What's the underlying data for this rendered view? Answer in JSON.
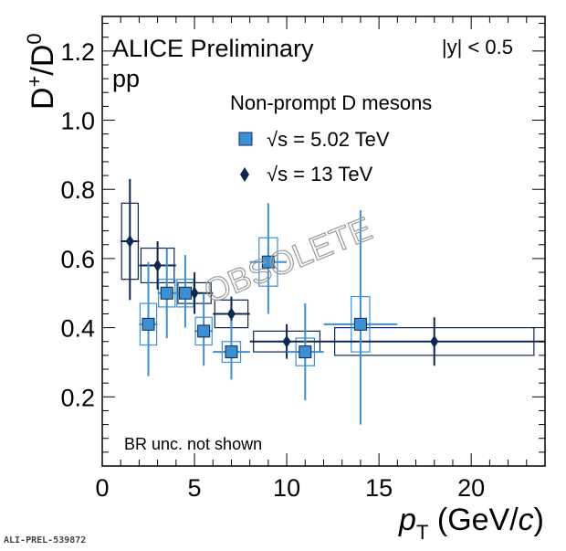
{
  "chart_data": {
    "type": "scatter",
    "xlim": [
      0,
      24
    ],
    "ylim": [
      0,
      1.3
    ],
    "xticks": [
      0,
      5,
      10,
      15,
      20
    ],
    "yticks": [
      0.2,
      0.4,
      0.6,
      0.8,
      1.0,
      1.2
    ],
    "ytick_labels": [
      "0.2",
      "0.4",
      "0.6",
      "0.8",
      "1.0",
      "1.2"
    ],
    "xtick_labels": [
      "0",
      "5",
      "10",
      "15",
      "20"
    ],
    "xlabel": "p_T (GeV/c)",
    "xlabel_main": "p",
    "xlabel_sub": "T",
    "xlabel_unit_open": " (GeV/",
    "xlabel_unit_c": "c",
    "xlabel_unit_close": ")",
    "ylabel": "D+/D0",
    "ylabel_D1": "D",
    "ylabel_sup1": "+",
    "ylabel_slash": "/D",
    "ylabel_sup2": "0",
    "experiment": "ALICE Preliminary",
    "system": "pp",
    "rapidity": "|y| < 0.5",
    "legend_title": "Non-prompt D mesons",
    "note": "BR unc. not shown",
    "watermark": "OBSOLETE",
    "grid": false,
    "legend_position": "top-right",
    "colors": {
      "s502": "#3d8fd4",
      "s13": "#0d2850"
    },
    "series": [
      {
        "name": "√s = 5.02 TeV",
        "marker": "square",
        "points": [
          {
            "x": 2.5,
            "y": 0.41,
            "xlo": 2,
            "xhi": 3,
            "stat_lo": 0.15,
            "stat_hi": 0.18,
            "sys": 0.06
          },
          {
            "x": 3.5,
            "y": 0.5,
            "xlo": 3,
            "xhi": 4,
            "stat_lo": 0.13,
            "stat_hi": 0.13,
            "sys": 0.04
          },
          {
            "x": 4.5,
            "y": 0.5,
            "xlo": 4,
            "xhi": 5,
            "stat_lo": 0.1,
            "stat_hi": 0.11,
            "sys": 0.04
          },
          {
            "x": 5.5,
            "y": 0.39,
            "xlo": 5,
            "xhi": 6,
            "stat_lo": 0.1,
            "stat_hi": 0.11,
            "sys": 0.04
          },
          {
            "x": 7,
            "y": 0.33,
            "xlo": 6,
            "xhi": 8,
            "stat_lo": 0.08,
            "stat_hi": 0.09,
            "sys": 0.03
          },
          {
            "x": 9,
            "y": 0.59,
            "xlo": 8,
            "xhi": 10,
            "stat_lo": 0.15,
            "stat_hi": 0.17,
            "sys": 0.07
          },
          {
            "x": 11,
            "y": 0.33,
            "xlo": 10,
            "xhi": 12,
            "stat_lo": 0.14,
            "stat_hi": 0.14,
            "sys": 0.04
          },
          {
            "x": 14,
            "y": 0.41,
            "xlo": 12,
            "xhi": 16,
            "stat_lo": 0.29,
            "stat_hi": 0.33,
            "sys": 0.08
          }
        ]
      },
      {
        "name": "√s = 13 TeV",
        "marker": "diamond",
        "points": [
          {
            "x": 1.5,
            "y": 0.65,
            "xlo": 1,
            "xhi": 2,
            "stat_lo": 0.17,
            "stat_hi": 0.18,
            "sys": 0.11
          },
          {
            "x": 3,
            "y": 0.58,
            "xlo": 2,
            "xhi": 4,
            "stat_lo": 0.07,
            "stat_hi": 0.07,
            "sys": 0.05
          },
          {
            "x": 5,
            "y": 0.5,
            "xlo": 4,
            "xhi": 6,
            "stat_lo": 0.06,
            "stat_hi": 0.06,
            "sys": 0.03
          },
          {
            "x": 7,
            "y": 0.44,
            "xlo": 6,
            "xhi": 8,
            "stat_lo": 0.05,
            "stat_hi": 0.05,
            "sys": 0.04
          },
          {
            "x": 10,
            "y": 0.36,
            "xlo": 8,
            "xhi": 12,
            "stat_lo": 0.05,
            "stat_hi": 0.05,
            "sys": 0.03
          },
          {
            "x": 18,
            "y": 0.36,
            "xlo": 12,
            "xhi": 24,
            "stat_lo": 0.07,
            "stat_hi": 0.07,
            "sys": 0.04
          }
        ]
      }
    ]
  },
  "footer_id": "ALI-PREL-539872"
}
